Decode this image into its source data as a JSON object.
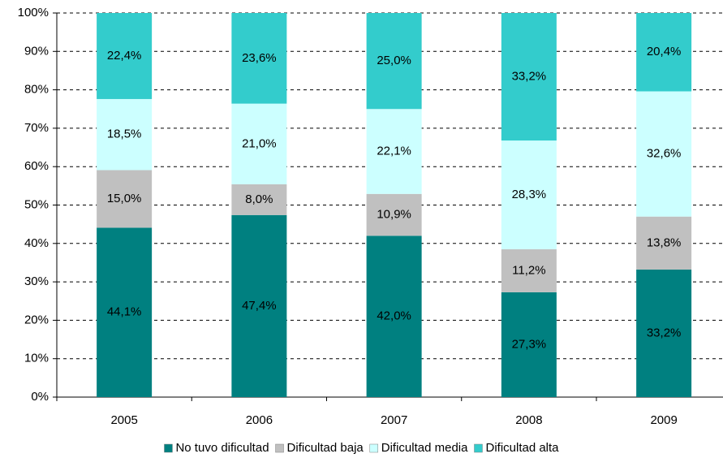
{
  "chart_data": {
    "type": "stacked_bar",
    "categories": [
      "2005",
      "2006",
      "2007",
      "2008",
      "2009"
    ],
    "series": [
      {
        "name": "No tuvo dificultad",
        "color": "#008080",
        "values": [
          44.1,
          47.4,
          42.0,
          27.3,
          33.2
        ],
        "value_labels": [
          "44,1%",
          "47,4%",
          "42,0%",
          "27,3%",
          "33,2%"
        ]
      },
      {
        "name": "Dificultad baja",
        "color": "#c0c0c0",
        "values": [
          15.0,
          8.0,
          10.9,
          11.2,
          13.8
        ],
        "value_labels": [
          "15,0%",
          "8,0%",
          "10,9%",
          "11,2%",
          "13,8%"
        ]
      },
      {
        "name": "Dificultad media",
        "color": "#ccffff",
        "values": [
          18.5,
          21.0,
          22.1,
          28.3,
          32.6
        ],
        "value_labels": [
          "18,5%",
          "21,0%",
          "22,1%",
          "28,3%",
          "32,6%"
        ]
      },
      {
        "name": "Dificultad alta",
        "color": "#33cccc",
        "values": [
          22.4,
          23.6,
          25.0,
          33.2,
          20.4
        ],
        "value_labels": [
          "22,4%",
          "23,6%",
          "25,0%",
          "33,2%",
          "20,4%"
        ]
      }
    ],
    "ylim": [
      0,
      100
    ],
    "yticks": [
      {
        "value": 0,
        "label": "0%"
      },
      {
        "value": 10,
        "label": "10%"
      },
      {
        "value": 20,
        "label": "20%"
      },
      {
        "value": 30,
        "label": "30%"
      },
      {
        "value": 40,
        "label": "40%"
      },
      {
        "value": 50,
        "label": "50%"
      },
      {
        "value": 60,
        "label": "60%"
      },
      {
        "value": 70,
        "label": "70%"
      },
      {
        "value": 80,
        "label": "80%"
      },
      {
        "value": 90,
        "label": "90%"
      },
      {
        "value": 100,
        "label": "100%"
      }
    ],
    "grid": true,
    "legend": "bottom"
  }
}
